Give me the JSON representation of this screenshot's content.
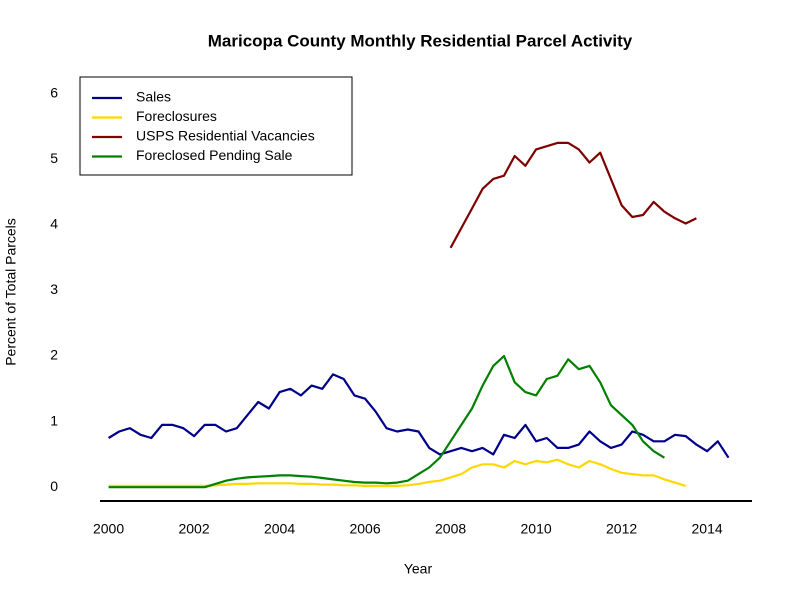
{
  "chart_data": {
    "type": "line",
    "title": "Maricopa County Monthly Residential Parcel Activity",
    "x_label": "Year",
    "y_label": "Percent of Total Parcels",
    "xlim": [
      1999.8,
      2015.05
    ],
    "ylim": [
      -0.21,
      6.3
    ],
    "xticks": [
      2000,
      2002,
      2004,
      2006,
      2008,
      2010,
      2012,
      2014
    ],
    "yticks": [
      0,
      1,
      2,
      3,
      4,
      5,
      6
    ],
    "grid": false,
    "legend": "top-left",
    "x": [
      2000,
      2000.25,
      2000.5,
      2000.75,
      2001,
      2001.25,
      2001.5,
      2001.75,
      2002,
      2002.25,
      2002.5,
      2002.75,
      2003,
      2003.25,
      2003.5,
      2003.75,
      2004,
      2004.25,
      2004.5,
      2004.75,
      2005,
      2005.25,
      2005.5,
      2005.75,
      2006,
      2006.25,
      2006.5,
      2006.75,
      2007,
      2007.25,
      2007.5,
      2007.75,
      2008,
      2008.25,
      2008.5,
      2008.75,
      2009,
      2009.25,
      2009.5,
      2009.75,
      2010,
      2010.25,
      2010.5,
      2010.75,
      2011,
      2011.25,
      2011.5,
      2011.75,
      2012,
      2012.25,
      2012.5,
      2012.75,
      2013,
      2013.25,
      2013.5,
      2013.75,
      2014,
      2014.25,
      2014.5
    ],
    "series": [
      {
        "name": "Sales",
        "color": "#00008b",
        "values": [
          0.75,
          0.85,
          0.9,
          0.8,
          0.75,
          0.95,
          0.95,
          0.9,
          0.78,
          0.95,
          0.95,
          0.85,
          0.9,
          1.1,
          1.3,
          1.2,
          1.45,
          1.5,
          1.4,
          1.55,
          1.5,
          1.72,
          1.65,
          1.4,
          1.35,
          1.15,
          0.9,
          0.85,
          0.88,
          0.85,
          0.6,
          0.5,
          0.55,
          0.6,
          0.55,
          0.6,
          0.5,
          0.8,
          0.75,
          0.95,
          0.7,
          0.75,
          0.6,
          0.6,
          0.65,
          0.85,
          0.7,
          0.6,
          0.65,
          0.85,
          0.8,
          0.7,
          0.7,
          0.8,
          0.78,
          0.65,
          0.55,
          0.7,
          0.45
        ]
      },
      {
        "name": "Foreclosures",
        "color": "#ffd700",
        "values": [
          0.02,
          0.02,
          0.02,
          0.02,
          0.02,
          0.02,
          0.02,
          0.02,
          0.02,
          0.02,
          0.03,
          0.04,
          0.05,
          0.05,
          0.06,
          0.06,
          0.06,
          0.06,
          0.05,
          0.05,
          0.04,
          0.04,
          0.03,
          0.03,
          0.02,
          0.02,
          0.02,
          0.02,
          0.03,
          0.05,
          0.08,
          0.1,
          0.15,
          0.2,
          0.3,
          0.35,
          0.35,
          0.3,
          0.4,
          0.35,
          0.4,
          0.38,
          0.42,
          0.35,
          0.3,
          0.4,
          0.35,
          0.28,
          0.22,
          0.2,
          0.18,
          0.18,
          0.12,
          0.07,
          0.02,
          null,
          null,
          null,
          null
        ]
      },
      {
        "name": "USPS Residential Vacancies",
        "color": "#800000",
        "values": [
          null,
          null,
          null,
          null,
          null,
          null,
          null,
          null,
          null,
          null,
          null,
          null,
          null,
          null,
          null,
          null,
          null,
          null,
          null,
          null,
          null,
          null,
          null,
          null,
          null,
          null,
          null,
          null,
          null,
          null,
          null,
          null,
          3.65,
          3.95,
          4.25,
          4.55,
          4.7,
          4.75,
          5.05,
          4.9,
          5.15,
          5.2,
          5.25,
          5.25,
          5.15,
          4.95,
          5.1,
          4.7,
          4.3,
          4.12,
          4.15,
          4.35,
          4.2,
          4.1,
          4.02,
          4.1,
          null,
          null,
          null
        ]
      },
      {
        "name": "Foreclosed Pending Sale",
        "color": "#008000",
        "values": [
          0,
          0,
          0,
          0,
          0,
          0,
          0,
          0,
          0,
          0,
          0.05,
          0.1,
          0.13,
          0.15,
          0.16,
          0.17,
          0.18,
          0.18,
          0.17,
          0.16,
          0.14,
          0.12,
          0.1,
          0.08,
          0.07,
          0.07,
          0.06,
          0.07,
          0.1,
          0.2,
          0.3,
          0.45,
          0.7,
          0.95,
          1.2,
          1.55,
          1.85,
          2.0,
          1.6,
          1.45,
          1.4,
          1.65,
          1.7,
          1.95,
          1.8,
          1.85,
          1.6,
          1.25,
          1.1,
          0.95,
          0.7,
          0.55,
          0.45,
          null,
          null,
          null,
          null,
          null,
          null
        ]
      }
    ]
  }
}
